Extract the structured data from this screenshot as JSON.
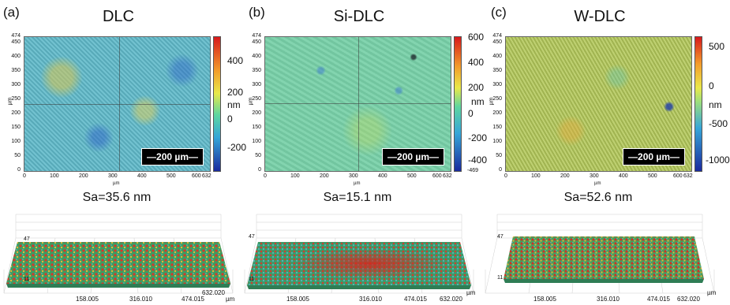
{
  "panels": [
    {
      "tag": "(a)",
      "title": "DLC",
      "y_ticks": [
        "474",
        "450",
        "400",
        "350",
        "300",
        "250",
        "200",
        "150",
        "100",
        "50",
        "0"
      ],
      "y_label": "µm",
      "x_ticks": [
        "0",
        "100",
        "200",
        "300",
        "400",
        "500",
        "600",
        "632"
      ],
      "x_label": "µm",
      "scalebar": "200 µm",
      "colorbar_ticks": [
        "400",
        "200",
        "0",
        "-200"
      ],
      "colorbar_unit": "nm",
      "sa": "Sa=35.6 nm",
      "bottom_ticks": [
        "158.005",
        "316.010",
        "474.015",
        "632.020"
      ],
      "bottom_unit": "µm",
      "side_labels": [
        "47",
        "11"
      ],
      "map_color": "#5fb9c9"
    },
    {
      "tag": "(b)",
      "title": "Si-DLC",
      "y_ticks": [
        "474",
        "450",
        "400",
        "350",
        "300",
        "250",
        "200",
        "150",
        "100",
        "50",
        "0"
      ],
      "y_label": "µm",
      "x_ticks": [
        "0",
        "100",
        "200",
        "300",
        "400",
        "500",
        "600",
        "632"
      ],
      "x_label": "µm",
      "scalebar": "200 µm",
      "colorbar_ticks": [
        "600",
        "400",
        "200",
        "0",
        "-200",
        "-400"
      ],
      "colorbar_extra": "-469",
      "colorbar_unit": "nm",
      "sa": "Sa=15.1 nm",
      "bottom_ticks": [
        "158.005",
        "316.010",
        "474.015",
        "632.020"
      ],
      "bottom_unit": "µm",
      "side_labels": [
        "47",
        "11"
      ],
      "map_color": "#78d0a8"
    },
    {
      "tag": "(c)",
      "title": "W-DLC",
      "y_ticks": [
        "474",
        "450",
        "400",
        "350",
        "300",
        "250",
        "200",
        "150",
        "100",
        "50",
        "0"
      ],
      "y_label": "µm",
      "x_ticks": [
        "0",
        "100",
        "200",
        "300",
        "400",
        "500",
        "600",
        "632"
      ],
      "x_label": "µm",
      "scalebar": "200 µm",
      "colorbar_ticks": [
        "500",
        "0",
        "-500",
        "-1000"
      ],
      "colorbar_unit": "nm",
      "sa": "Sa=52.6 nm",
      "bottom_ticks": [
        "158.005",
        "316.010",
        "474.015",
        "632.020"
      ],
      "bottom_unit": "µm",
      "side_labels": [
        "47",
        "11"
      ],
      "map_color": "#b3c85a"
    }
  ]
}
